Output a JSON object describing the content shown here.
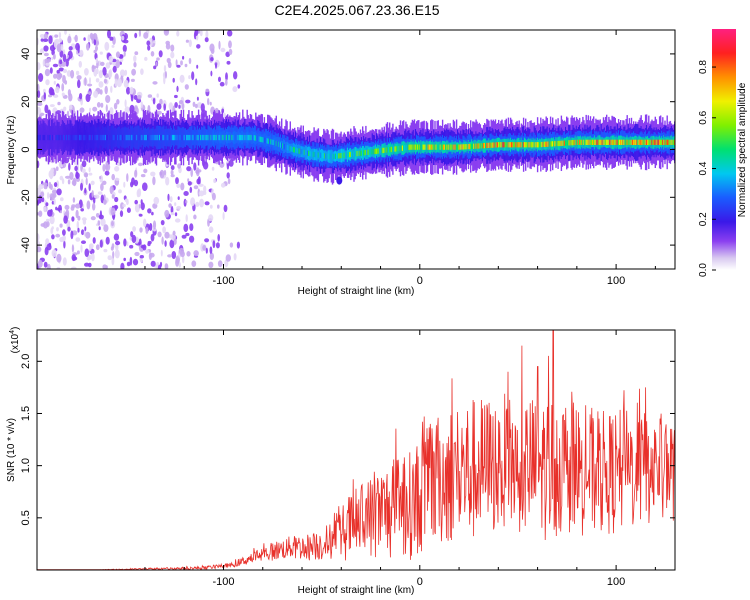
{
  "title": "C2E4.2025.067.23.36.E15",
  "chart_data": [
    {
      "type": "heatmap",
      "title": "C2E4.2025.067.23.36.E15",
      "xlabel": "Height of straight line (km)",
      "ylabel": "Frequency (Hz)",
      "xlim": [
        -195,
        130
      ],
      "ylim": [
        -50,
        50
      ],
      "x_ticks": [
        -100,
        0,
        100
      ],
      "y_ticks": [
        -40,
        -20,
        0,
        20,
        40
      ],
      "colorbar": {
        "label": "Normalized spectral amplitude",
        "range": [
          0,
          0.95
        ],
        "ticks": [
          0.0,
          0.2,
          0.4,
          0.6,
          0.8
        ]
      },
      "ridge": {
        "x": [
          -185,
          -150,
          -120,
          -100,
          -85,
          -75,
          -65,
          -55,
          -45,
          -35,
          -25,
          -15,
          -5,
          5,
          20,
          40,
          60,
          80,
          100,
          120,
          130
        ],
        "y": [
          5,
          5,
          5,
          5,
          5,
          3,
          0,
          -2,
          -3,
          -2,
          -1,
          0,
          1,
          1,
          1,
          2,
          2,
          3,
          3,
          3,
          3
        ],
        "peak_amplitude": [
          0.25,
          0.35,
          0.4,
          0.45,
          0.45,
          0.45,
          0.5,
          0.55,
          0.55,
          0.6,
          0.6,
          0.65,
          0.7,
          0.75,
          0.8,
          0.85,
          0.85,
          0.8,
          0.85,
          0.9,
          0.85
        ]
      },
      "noise_region_x": [
        -195,
        -92
      ]
    },
    {
      "type": "line",
      "xlabel": "Height of straight line (km)",
      "ylabel": "SNR (10 * v/v)",
      "y_multiplier": "(x10",
      "y_multiplier_exp": "4",
      "y_multiplier_close": ")",
      "xlim": [
        -195,
        130
      ],
      "ylim": [
        0,
        2.3
      ],
      "x_ticks": [
        -100,
        0,
        100
      ],
      "y_ticks": [
        0.5,
        1.0,
        1.5,
        2.0
      ],
      "series": [
        {
          "color": "#e8302a",
          "x": [
            -195,
            -170,
            -140,
            -110,
            -95,
            -85,
            -75,
            -65,
            -55,
            -45,
            -35,
            -25,
            -15,
            -5,
            5,
            15,
            25,
            35,
            45,
            55,
            65,
            75,
            85,
            95,
            105,
            115,
            125,
            130
          ],
          "y": [
            0.0,
            0.0,
            0.01,
            0.02,
            0.05,
            0.12,
            0.18,
            0.22,
            0.22,
            0.28,
            0.42,
            0.5,
            0.58,
            0.62,
            0.8,
            0.92,
            0.95,
            1.0,
            1.02,
            1.0,
            0.98,
            1.0,
            0.95,
            0.92,
            0.95,
            0.97,
            0.98,
            0.95
          ],
          "noise_amplitude": [
            0.0,
            0.0,
            0.01,
            0.02,
            0.03,
            0.08,
            0.12,
            0.15,
            0.18,
            0.25,
            0.45,
            0.55,
            0.65,
            0.7,
            0.8,
            0.9,
            0.95,
            0.9,
            0.9,
            0.9,
            0.95,
            0.85,
            0.85,
            0.8,
            0.8,
            0.75,
            0.7,
            0.65
          ],
          "spikes": [
            {
              "x": 68,
              "y": 2.3
            },
            {
              "x": 60,
              "y": 1.95
            },
            {
              "x": 45,
              "y": 1.9
            },
            {
              "x": 115,
              "y": 1.75
            }
          ]
        }
      ]
    }
  ]
}
